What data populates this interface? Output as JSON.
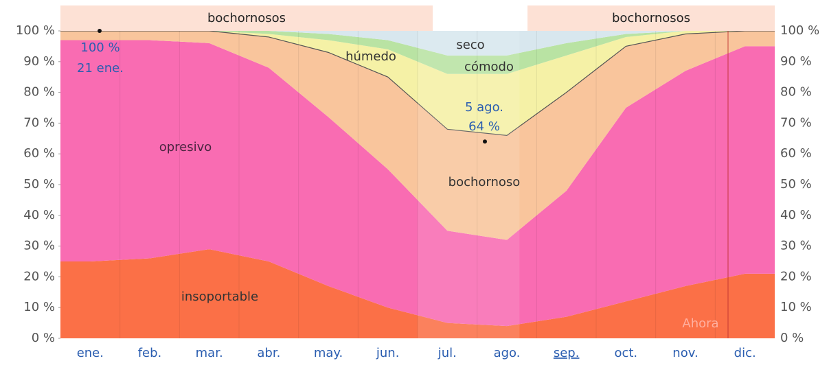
{
  "chart_data": {
    "type": "stacked_area",
    "categories": [
      "ene.",
      "feb.",
      "mar.",
      "abr.",
      "may.",
      "jun.",
      "jul.",
      "ago.",
      "sep.",
      "oct.",
      "nov.",
      "dic."
    ],
    "series": [
      {
        "name": "insoportable",
        "color": "#fb7047",
        "values": [
          25,
          26,
          29,
          25,
          17,
          10,
          5,
          4,
          7,
          12,
          17,
          21
        ]
      },
      {
        "name": "opresivo",
        "color": "#f96cb2",
        "values": [
          72,
          71,
          67,
          63,
          55,
          45,
          30,
          28,
          41,
          63,
          70,
          74
        ]
      },
      {
        "name": "bochornoso",
        "color": "#f9c59c",
        "values": [
          3,
          3,
          4,
          10,
          21,
          30,
          33,
          34,
          32,
          20,
          12,
          5
        ]
      },
      {
        "name": "húmedo",
        "color": "#f5f1a6",
        "values": [
          0,
          0,
          0,
          1,
          4,
          9,
          18,
          20,
          12,
          3,
          1,
          0
        ]
      },
      {
        "name": "cómodo",
        "color": "#b9e3a3",
        "values": [
          0,
          0,
          0,
          1,
          2,
          3,
          6,
          6,
          4,
          1,
          0,
          0
        ]
      },
      {
        "name": "seco",
        "color": "#d8e7ee",
        "values": [
          0,
          0,
          0,
          0,
          1,
          3,
          8,
          8,
          4,
          1,
          0,
          0
        ]
      }
    ],
    "ylim": [
      0,
      100
    ],
    "yticks": [
      {
        "value": 0,
        "label": "0 %"
      },
      {
        "value": 10,
        "label": "10 %"
      },
      {
        "value": 20,
        "label": "20 %"
      },
      {
        "value": 30,
        "label": "30 %"
      },
      {
        "value": 40,
        "label": "40 %"
      },
      {
        "value": 50,
        "label": "50 %"
      },
      {
        "value": 60,
        "label": "60 %"
      },
      {
        "value": 70,
        "label": "70 %"
      },
      {
        "value": 80,
        "label": "80 %"
      },
      {
        "value": 90,
        "label": "90 %"
      },
      {
        "value": 100,
        "label": "100 %"
      }
    ],
    "annotations": [
      {
        "label": "100 %",
        "date": "21 ene.",
        "value": 100
      },
      {
        "label": "64 %",
        "date": "5 ago.",
        "value": 64
      }
    ],
    "periods": [
      "bochornosos",
      "bochornosos"
    ],
    "now_label": "Ahora"
  }
}
